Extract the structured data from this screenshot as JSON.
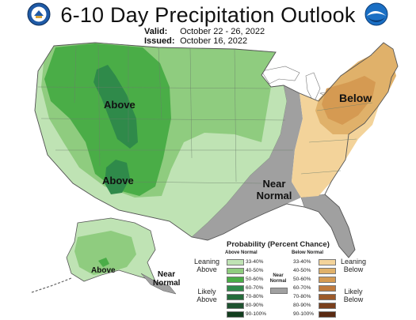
{
  "header": {
    "title": "6-10 Day Precipitation Outlook",
    "valid_label": "Valid:",
    "valid_dates": "October 22 - 26, 2022",
    "issued_label": "Issued:",
    "issued_date": "October 16, 2022"
  },
  "logos": {
    "left": "doc-seal-icon",
    "right": "noaa-logo-icon"
  },
  "map_labels": {
    "above_northwest": "Above",
    "above_southwest": "Above",
    "below_northeast": "Below",
    "near_normal_southeast": "Near Normal",
    "above_alaska": "Above",
    "near_normal_alaska": "Near Normal"
  },
  "legend": {
    "title": "Probability (Percent Chance)",
    "above_header": "Above Normal",
    "below_header": "Below Normal",
    "near_header": "Near Normal",
    "leaning_above": "Leaning Above",
    "likely_above": "Likely Above",
    "leaning_below": "Leaning Below",
    "likely_below": "Likely Below",
    "ranges": [
      "33-40%",
      "40-50%",
      "50-60%",
      "60-70%",
      "70-80%",
      "80-90%",
      "90-100%"
    ],
    "above_colors": [
      "#bfe3b4",
      "#8fcc7f",
      "#4aad47",
      "#2f8a4a",
      "#246b3a",
      "#1e5230",
      "#123d1e"
    ],
    "below_colors": [
      "#f3d39a",
      "#e0b16a",
      "#d59a52",
      "#c07a3c",
      "#9c5a2a",
      "#7a3f1c",
      "#5a2a12"
    ],
    "near_color": "#a0a0a0"
  }
}
